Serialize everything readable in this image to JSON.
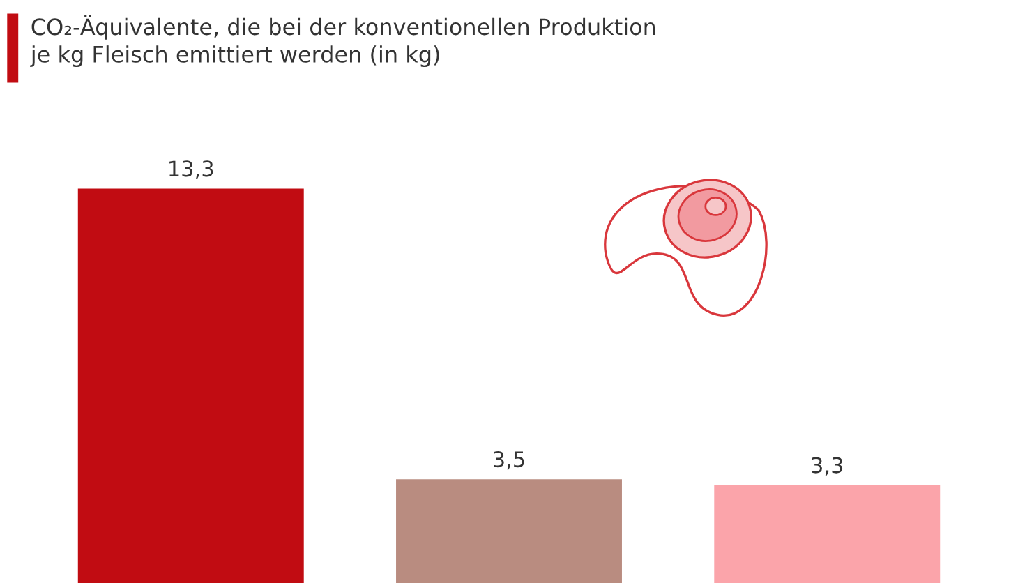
{
  "chart_data": {
    "type": "bar",
    "subtitle": "CO₂-Äquivalente, die bei der konventionellen Produktion\nje kg Fleisch emittiert werden (in kg)",
    "categories": [
      null,
      null,
      null
    ],
    "values": [
      13.3,
      3.5,
      3.3
    ],
    "colors": [
      "#c10c12",
      "#b98c80",
      "#fba4aa"
    ],
    "value_labels": [
      "13,3",
      "3,5",
      "3,3"
    ]
  }
}
